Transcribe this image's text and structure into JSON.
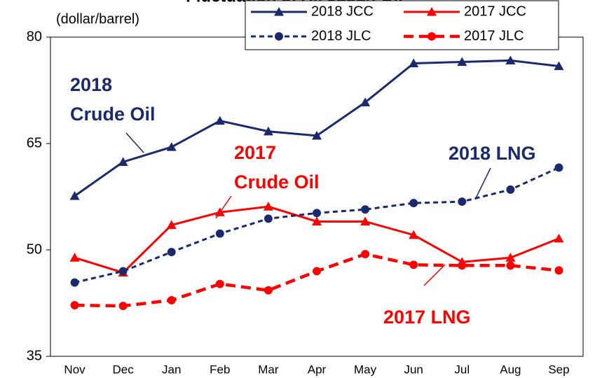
{
  "chart_data": {
    "type": "line",
    "title": "Fluctuation of All Japan Oil",
    "y_label": "(dollar/barrel)",
    "categories": [
      "Nov",
      "Dec",
      "Jan",
      "Feb",
      "Mar",
      "Apr",
      "May",
      "Jun",
      "Jul",
      "Aug",
      "Sep"
    ],
    "series": [
      {
        "name": "2018 JCC",
        "color": "#1a2a6c",
        "marker": "triangle",
        "dash": false,
        "values": [
          57.6,
          62.4,
          64.5,
          68.2,
          66.7,
          66.1,
          70.8,
          76.3,
          76.5,
          76.7,
          75.9
        ]
      },
      {
        "name": "2017 JCC",
        "color": "#ff0000",
        "marker": "triangle",
        "dash": false,
        "values": [
          48.9,
          46.8,
          53.5,
          55.3,
          56.1,
          54.0,
          54.0,
          52.1,
          48.3,
          48.9,
          51.6
        ]
      },
      {
        "name": "2018 JLC",
        "color": "#1a2a6c",
        "marker": "circle",
        "dash": true,
        "values": [
          45.4,
          47.0,
          49.7,
          52.3,
          54.4,
          55.2,
          55.7,
          56.6,
          56.8,
          58.5,
          61.6
        ]
      },
      {
        "name": "2017 JLC",
        "color": "#ff0000",
        "marker": "circle",
        "dash": true,
        "values": [
          42.2,
          42.1,
          42.9,
          45.2,
          44.3,
          47.0,
          49.4,
          47.9,
          47.8,
          47.8,
          47.1
        ]
      }
    ],
    "annotations": [
      {
        "lines": [
          "2018",
          "Crude Oil"
        ],
        "color": "#1a2a6c"
      },
      {
        "lines": [
          "2017",
          "Crude Oil"
        ],
        "color": "#ff0000"
      },
      {
        "lines": [
          "2018 LNG"
        ],
        "color": "#1a2a6c"
      },
      {
        "lines": [
          "2017 LNG"
        ],
        "color": "#ff0000"
      }
    ],
    "ylim": [
      35,
      80
    ],
    "yticks": [
      35,
      50,
      65,
      80
    ],
    "grid": false,
    "legend": "top-right"
  }
}
